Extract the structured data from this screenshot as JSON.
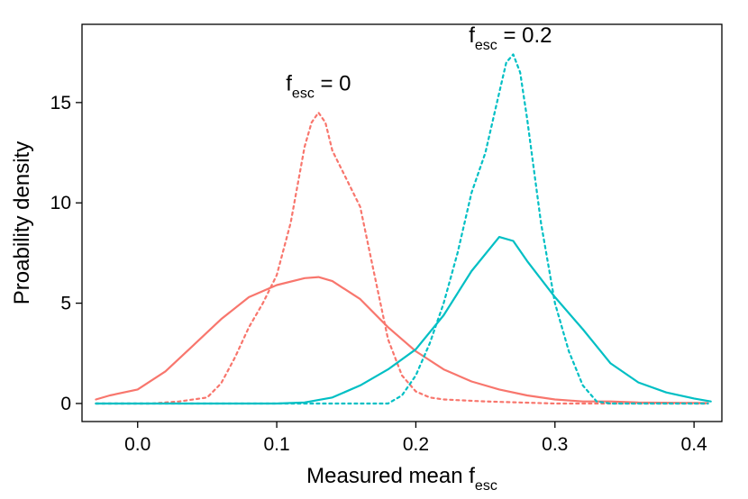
{
  "chart_data": {
    "type": "line",
    "xlabel_main": "Measured mean f",
    "xlabel_sub": "esc",
    "ylabel": "Proability density",
    "xlim": [
      -0.04,
      0.42
    ],
    "ylim": [
      -0.9,
      18.9
    ],
    "xticks": [
      0.0,
      0.1,
      0.2,
      0.3,
      0.4
    ],
    "xtick_labels": [
      "0.0",
      "0.1",
      "0.2",
      "0.3",
      "0.4"
    ],
    "yticks": [
      0,
      5,
      10,
      15
    ],
    "ytick_labels": [
      "0",
      "5",
      "10",
      "15"
    ],
    "grid": false,
    "annotations": [
      {
        "main": "f",
        "sub": "esc",
        "rest": " = 0",
        "x": 0.13,
        "y": 15.6
      },
      {
        "main": "f",
        "sub": "esc",
        "rest": " = 0.2",
        "x": 0.268,
        "y": 18.0
      }
    ],
    "series": [
      {
        "color": "#F8766D",
        "dash": "dotted",
        "x": [
          -0.03,
          0.01,
          0.03,
          0.05,
          0.06,
          0.07,
          0.08,
          0.09,
          0.1,
          0.11,
          0.12,
          0.125,
          0.13,
          0.135,
          0.14,
          0.15,
          0.16,
          0.17,
          0.18,
          0.19,
          0.2,
          0.21,
          0.22,
          0.25,
          0.3,
          0.41
        ],
        "y": [
          0,
          0,
          0.1,
          0.3,
          1.0,
          2.3,
          3.8,
          5.0,
          6.4,
          9.0,
          12.8,
          14.0,
          14.5,
          14.0,
          12.6,
          11.2,
          9.8,
          6.5,
          3.2,
          1.4,
          0.6,
          0.3,
          0.2,
          0.1,
          0,
          0
        ]
      },
      {
        "color": "#F8766D",
        "dash": "solid",
        "x": [
          -0.03,
          -0.02,
          0.0,
          0.02,
          0.04,
          0.06,
          0.08,
          0.1,
          0.12,
          0.13,
          0.14,
          0.16,
          0.18,
          0.2,
          0.22,
          0.24,
          0.26,
          0.28,
          0.3,
          0.32,
          0.34,
          0.36,
          0.41
        ],
        "y": [
          0.2,
          0.4,
          0.7,
          1.6,
          2.9,
          4.2,
          5.3,
          5.9,
          6.25,
          6.3,
          6.1,
          5.2,
          3.8,
          2.6,
          1.7,
          1.1,
          0.7,
          0.4,
          0.2,
          0.1,
          0.1,
          0.05,
          0.02
        ]
      },
      {
        "color": "#00BFC4",
        "dash": "dotted",
        "x": [
          -0.03,
          0.18,
          0.19,
          0.2,
          0.21,
          0.22,
          0.23,
          0.24,
          0.25,
          0.26,
          0.265,
          0.27,
          0.275,
          0.28,
          0.29,
          0.3,
          0.31,
          0.32,
          0.33,
          0.34,
          0.41
        ],
        "y": [
          0,
          0,
          0.4,
          1.4,
          3.0,
          5.0,
          7.5,
          10.5,
          12.5,
          15.5,
          17.0,
          17.4,
          16.5,
          14.2,
          9.0,
          5.0,
          2.6,
          0.9,
          0.1,
          0,
          0
        ]
      },
      {
        "color": "#00BFC4",
        "dash": "solid",
        "x": [
          -0.03,
          0.1,
          0.12,
          0.14,
          0.16,
          0.18,
          0.2,
          0.22,
          0.24,
          0.26,
          0.27,
          0.28,
          0.3,
          0.32,
          0.34,
          0.36,
          0.38,
          0.4,
          0.412
        ],
        "y": [
          0,
          0,
          0.05,
          0.3,
          0.9,
          1.7,
          2.7,
          4.4,
          6.6,
          8.3,
          8.1,
          7.1,
          5.3,
          3.7,
          2.0,
          1.05,
          0.55,
          0.25,
          0.1
        ]
      }
    ]
  }
}
